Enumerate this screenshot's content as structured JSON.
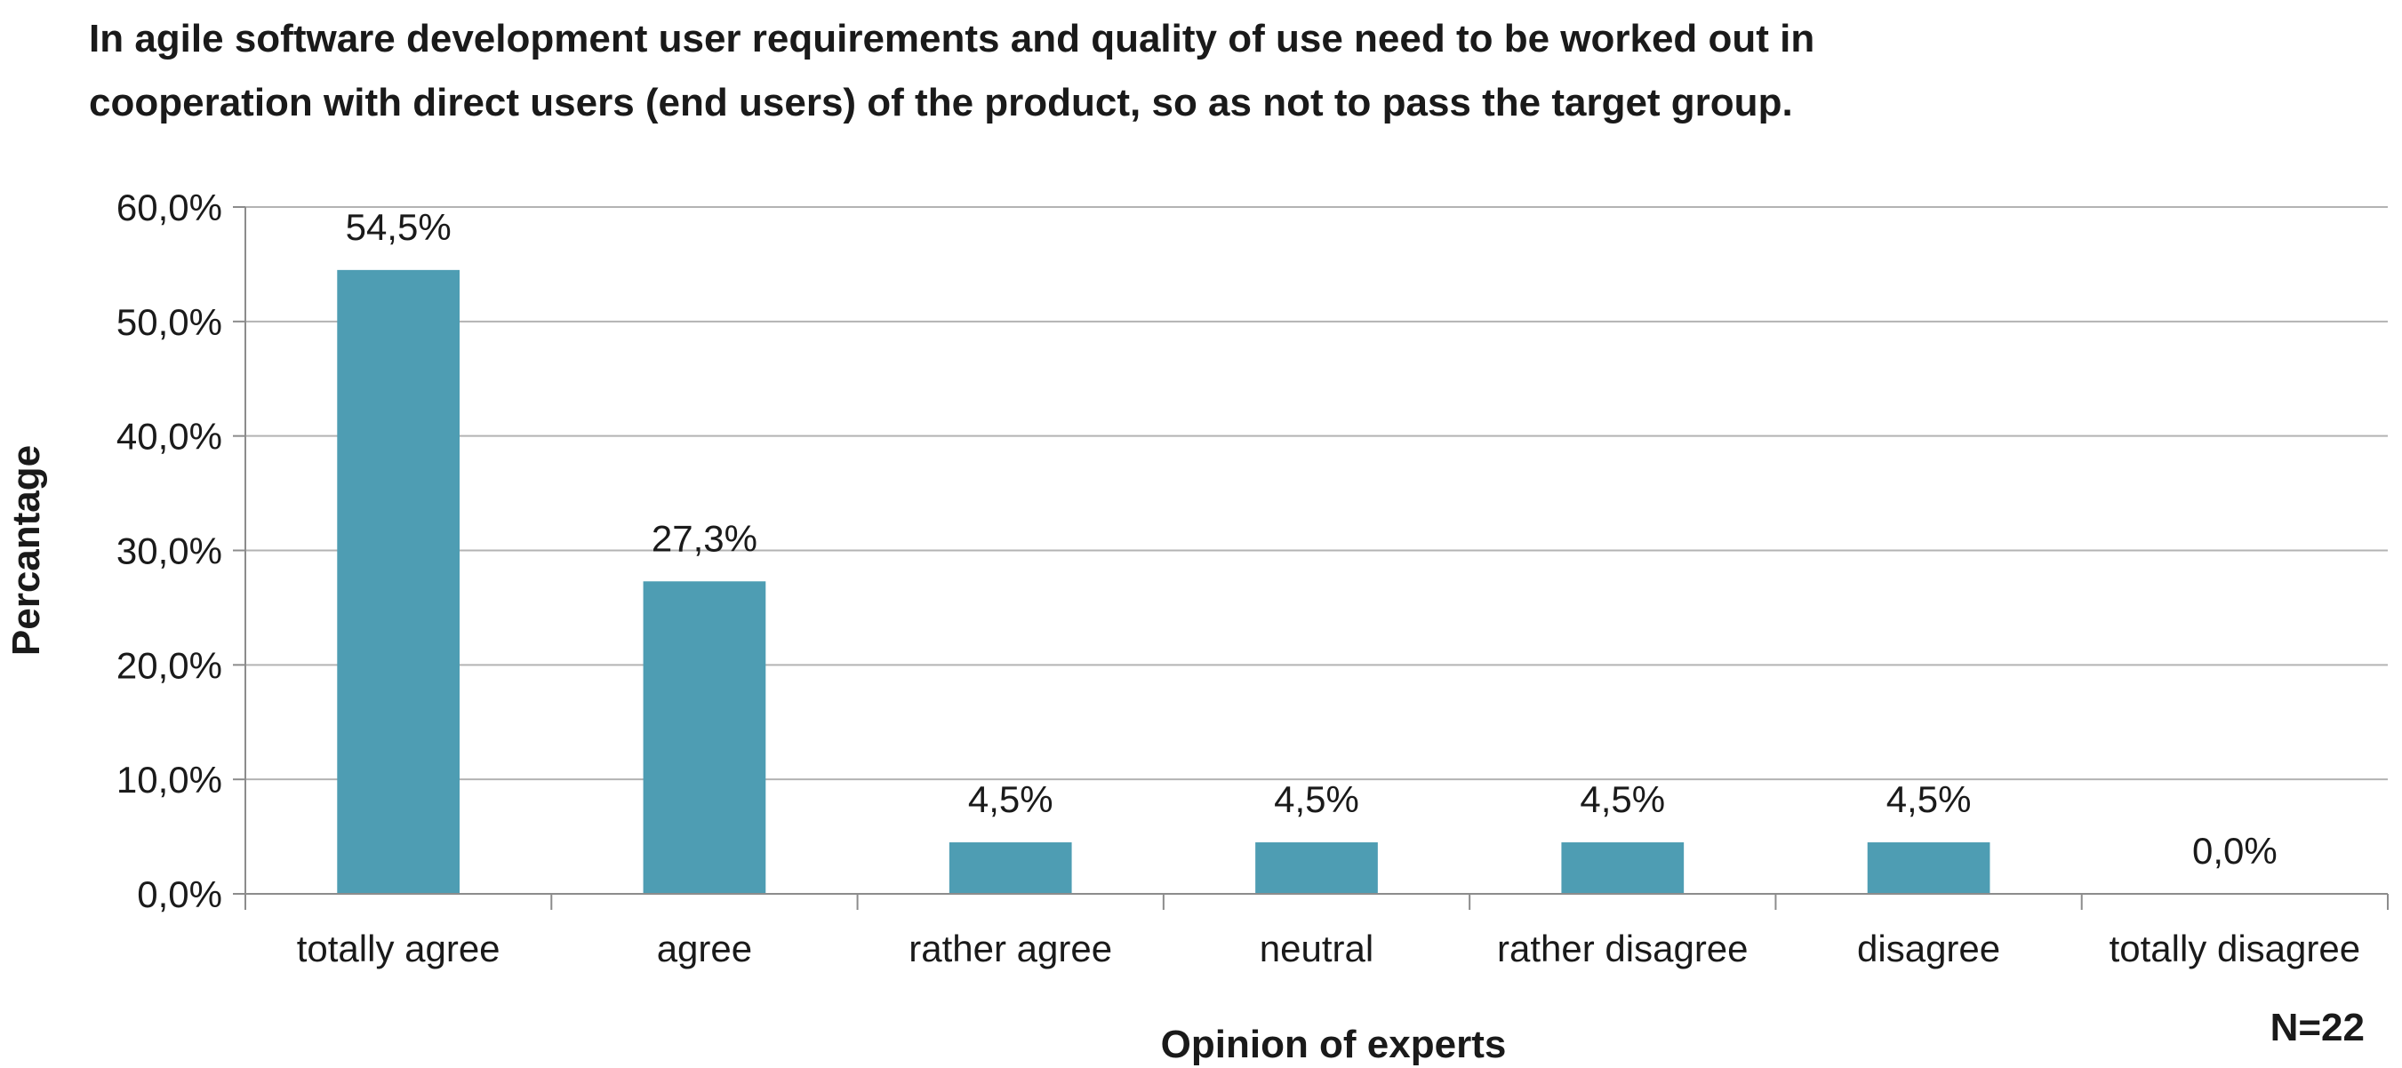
{
  "title_lines": [
    "In agile software development user requirements and quality of use need to be worked out in",
    "cooperation with direct users (end users) of the product, so as not to pass the target group."
  ],
  "sample_note": "N=22",
  "colors": {
    "bar": "#4e9db3",
    "gridline": "#b3b3b3",
    "axis": "#8c8c8c",
    "text": "#1a1a1a"
  },
  "chart_data": {
    "type": "bar",
    "title": "In agile software development user requirements and quality of use need to be worked out in cooperation with direct users (end users) of the product, so as not to pass the target group.",
    "xlabel": "Opinion of experts",
    "ylabel": "Percantage",
    "categories": [
      "totally agree",
      "agree",
      "rather agree",
      "neutral",
      "rather disagree",
      "disagree",
      "totally disagree"
    ],
    "values": [
      54.5,
      27.3,
      4.5,
      4.5,
      4.5,
      4.5,
      0.0
    ],
    "data_labels": [
      "54,5%",
      "27,3%",
      "4,5%",
      "4,5%",
      "4,5%",
      "4,5%",
      "0,0%"
    ],
    "y_ticks": [
      0,
      10,
      20,
      30,
      40,
      50,
      60
    ],
    "y_tick_labels": [
      "0,0%",
      "10,0%",
      "20,0%",
      "30,0%",
      "40,0%",
      "50,0%",
      "60,0%"
    ],
    "ylim": [
      0,
      60
    ],
    "grid": true,
    "legend": "none"
  }
}
